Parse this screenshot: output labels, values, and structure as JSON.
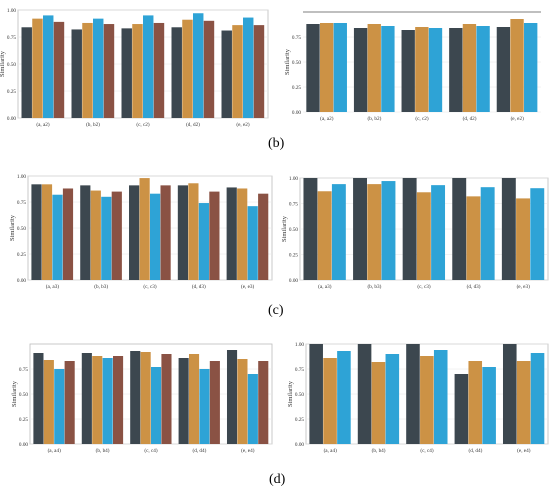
{
  "colors": {
    "series": [
      "#3c474f",
      "#cc9245",
      "#2ea3d6",
      "#8a5244"
    ],
    "red_artifact": "#cc3333",
    "green_artifact": "#2aa84a"
  },
  "panel_labels": {
    "b": "(b)",
    "c": "(c)",
    "d": "(d)"
  },
  "chart_data": [
    {
      "id": "row1-left",
      "type": "bar",
      "categories": [
        "(a, a2)",
        "(b, b2)",
        "(c, c2)",
        "(d, d2)",
        "(e, e2)"
      ],
      "series": [
        {
          "values": [
            0.84,
            0.82,
            0.83,
            0.84,
            0.81
          ]
        },
        {
          "values": [
            0.92,
            0.88,
            0.87,
            0.91,
            0.86
          ]
        },
        {
          "values": [
            0.95,
            0.92,
            0.95,
            0.97,
            0.93
          ]
        },
        {
          "values": [
            0.89,
            0.87,
            0.88,
            0.9,
            0.86
          ]
        }
      ],
      "ylabel": "Similarity",
      "ylim": [
        0,
        1
      ],
      "yticks": [
        "0.00",
        "0.25",
        "0.50",
        "0.75",
        "1.00"
      ],
      "grid": true
    },
    {
      "id": "row1-right",
      "type": "bar",
      "categories": [
        "(a, a2)",
        "(b, b2)",
        "(c, c2)",
        "(d, d2)",
        "(e, e2)"
      ],
      "series": [
        {
          "values": [
            0.88,
            0.84,
            0.82,
            0.84,
            0.85
          ]
        },
        {
          "values": [
            0.89,
            0.88,
            0.85,
            0.88,
            0.93
          ]
        },
        {
          "values": [
            0.89,
            0.86,
            0.84,
            0.86,
            0.89
          ]
        }
      ],
      "ylabel": "Similarity",
      "ylim": [
        0,
        1
      ],
      "yticks": [
        "0.00",
        "0.25",
        "0.50",
        "0.75"
      ],
      "grid": true
    },
    {
      "id": "row2-left",
      "type": "bar",
      "categories": [
        "(a, a3)",
        "(b, b3)",
        "(c, c3)",
        "(d, d3)",
        "(e, e3)"
      ],
      "series": [
        {
          "values": [
            0.92,
            0.91,
            0.91,
            0.91,
            0.89
          ]
        },
        {
          "values": [
            0.92,
            0.86,
            0.98,
            0.93,
            0.88
          ]
        },
        {
          "values": [
            0.82,
            0.8,
            0.83,
            0.74,
            0.71
          ]
        },
        {
          "values": [
            0.88,
            0.85,
            0.91,
            0.85,
            0.83
          ]
        }
      ],
      "ylabel": "Similarity",
      "ylim": [
        0,
        1
      ],
      "yticks": [
        "0.00",
        "0.25",
        "0.50",
        "0.75",
        "1.00"
      ],
      "grid": true
    },
    {
      "id": "row2-right",
      "type": "bar",
      "categories": [
        "(a, a3)",
        "(b, b3)",
        "(c, c3)",
        "(d, d3)",
        "(e, e3)"
      ],
      "series": [
        {
          "values": [
            1.0,
            1.0,
            1.0,
            1.0,
            1.0
          ]
        },
        {
          "values": [
            0.87,
            0.94,
            0.86,
            0.82,
            0.8
          ]
        },
        {
          "values": [
            0.94,
            0.97,
            0.93,
            0.91,
            0.9
          ]
        }
      ],
      "ylabel": "Similarity",
      "ylim": [
        0,
        1
      ],
      "yticks": [
        "0.00",
        "0.25",
        "0.50",
        "0.75",
        "1.00"
      ],
      "grid": true
    },
    {
      "id": "row3-left",
      "type": "bar",
      "categories": [
        "(a, a4)",
        "(b, b4)",
        "(c, c4)",
        "(d, d4)",
        "(e, e4)"
      ],
      "series": [
        {
          "values": [
            0.91,
            0.91,
            0.93,
            0.86,
            0.94
          ]
        },
        {
          "values": [
            0.84,
            0.88,
            0.92,
            0.9,
            0.85
          ]
        },
        {
          "values": [
            0.75,
            0.86,
            0.77,
            0.75,
            0.7
          ]
        },
        {
          "values": [
            0.83,
            0.88,
            0.9,
            0.83,
            0.83
          ]
        }
      ],
      "ylabel": "Similarity",
      "ylim": [
        0,
        1
      ],
      "yticks": [
        "0.00",
        "0.25",
        "0.50",
        "0.75"
      ],
      "grid": true
    },
    {
      "id": "row3-right",
      "type": "bar",
      "categories": [
        "(a, a4)",
        "(b, b4)",
        "(c, c4)",
        "(d, d4)",
        "(e, e4)"
      ],
      "series": [
        {
          "values": [
            1.0,
            1.0,
            1.0,
            0.7,
            1.0
          ]
        },
        {
          "values": [
            0.86,
            0.82,
            0.88,
            0.83,
            0.83
          ]
        },
        {
          "values": [
            0.93,
            0.9,
            0.94,
            0.77,
            0.91
          ]
        }
      ],
      "ylabel": "Similarity",
      "ylim": [
        0,
        1
      ],
      "yticks": [
        "0.00",
        "0.25",
        "0.50",
        "0.75",
        "1.00"
      ],
      "grid": true
    }
  ]
}
